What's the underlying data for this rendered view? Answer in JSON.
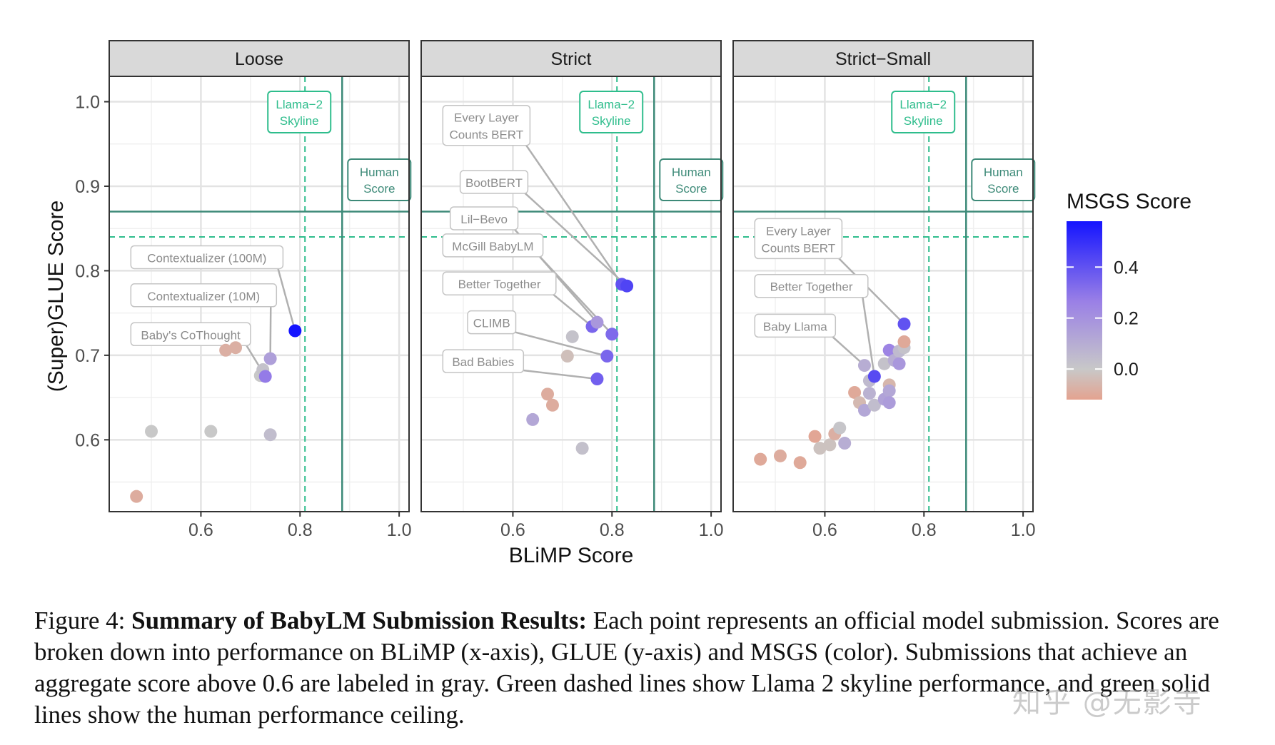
{
  "chart_data": {
    "type": "scatter",
    "xlabel": "BLiMP Score",
    "ylabel": "(Super)GLUE Score",
    "xlim": [
      0.415,
      1.02
    ],
    "ylim": [
      0.515,
      1.03
    ],
    "xticks": [
      "0.6",
      "0.8",
      "1.0"
    ],
    "yticks": [
      "0.6",
      "0.7",
      "0.8",
      "0.9",
      "1.0"
    ],
    "grid": true,
    "legend": {
      "title": "MSGS Score",
      "placement": "right",
      "ticks": [
        "0.4",
        "0.2",
        "0.0"
      ],
      "range": [
        -0.12,
        0.58
      ],
      "colors": {
        "low": "#e4a390",
        "mid": "#c8c8c8",
        "high": "#1414ff"
      }
    },
    "reference_lines": {
      "skyline": {
        "label": "Llama−2\nSkyline",
        "x": 0.81,
        "y": 0.84,
        "style": "dashed",
        "color": "#2ebd8c"
      },
      "human": {
        "label": "Human\nScore",
        "x": 0.885,
        "y": 0.87,
        "style": "solid",
        "color": "#3d8a78"
      }
    },
    "panels": [
      {
        "title": "Loose",
        "points": [
          {
            "x": 0.47,
            "y": 0.533,
            "c": -0.09
          },
          {
            "x": 0.5,
            "y": 0.61,
            "c": 0.0
          },
          {
            "x": 0.62,
            "y": 0.61,
            "c": 0.0
          },
          {
            "x": 0.65,
            "y": 0.706,
            "c": -0.08
          },
          {
            "x": 0.67,
            "y": 0.709,
            "c": -0.08
          },
          {
            "x": 0.72,
            "y": 0.676,
            "c": 0.0
          },
          {
            "x": 0.725,
            "y": 0.683,
            "c": 0.02
          },
          {
            "x": 0.73,
            "y": 0.675,
            "c": 0.28
          },
          {
            "x": 0.74,
            "y": 0.696,
            "c": 0.15
          },
          {
            "x": 0.74,
            "y": 0.606,
            "c": 0.04
          },
          {
            "x": 0.79,
            "y": 0.729,
            "c": 0.58
          }
        ],
        "labels": [
          {
            "text": "Contextualizer (100M)",
            "lx": 0.45,
            "ly": 0.816,
            "tx": 0.79,
            "ty": 0.729
          },
          {
            "text": "Contextualizer (10M)",
            "lx": 0.45,
            "ly": 0.771,
            "tx": 0.74,
            "ty": 0.696
          },
          {
            "text": "Baby's CoThought",
            "lx": 0.45,
            "ly": 0.725,
            "tx": 0.73,
            "ty": 0.675
          }
        ]
      },
      {
        "title": "Strict",
        "points": [
          {
            "x": 0.64,
            "y": 0.624,
            "c": 0.12
          },
          {
            "x": 0.67,
            "y": 0.654,
            "c": -0.09
          },
          {
            "x": 0.68,
            "y": 0.641,
            "c": -0.09
          },
          {
            "x": 0.71,
            "y": 0.699,
            "c": -0.03
          },
          {
            "x": 0.72,
            "y": 0.722,
            "c": 0.02
          },
          {
            "x": 0.74,
            "y": 0.59,
            "c": 0.03
          },
          {
            "x": 0.76,
            "y": 0.734,
            "c": 0.34
          },
          {
            "x": 0.77,
            "y": 0.739,
            "c": 0.18
          },
          {
            "x": 0.77,
            "y": 0.672,
            "c": 0.36
          },
          {
            "x": 0.79,
            "y": 0.699,
            "c": 0.34
          },
          {
            "x": 0.8,
            "y": 0.725,
            "c": 0.33
          },
          {
            "x": 0.82,
            "y": 0.784,
            "c": 0.4
          },
          {
            "x": 0.83,
            "y": 0.782,
            "c": 0.44
          }
        ],
        "labels": [
          {
            "text": "Every Layer\nCounts BERT",
            "lx": 0.45,
            "ly": 0.972,
            "tx": 0.82,
            "ty": 0.784
          },
          {
            "text": "BootBERT",
            "lx": 0.485,
            "ly": 0.905,
            "tx": 0.83,
            "ty": 0.782
          },
          {
            "text": "Lil−Bevo",
            "lx": 0.465,
            "ly": 0.862,
            "tx": 0.8,
            "ty": 0.725
          },
          {
            "text": "McGill BabyLM",
            "lx": 0.45,
            "ly": 0.83,
            "tx": 0.77,
            "ty": 0.739
          },
          {
            "text": "Better Together",
            "lx": 0.45,
            "ly": 0.785,
            "tx": 0.76,
            "ty": 0.734
          },
          {
            "text": "CLIMB",
            "lx": 0.5,
            "ly": 0.739,
            "tx": 0.79,
            "ty": 0.699
          },
          {
            "text": "Bad Babies",
            "lx": 0.45,
            "ly": 0.693,
            "tx": 0.77,
            "ty": 0.672
          }
        ]
      },
      {
        "title": "Strict−Small",
        "points": [
          {
            "x": 0.47,
            "y": 0.577,
            "c": -0.1
          },
          {
            "x": 0.51,
            "y": 0.581,
            "c": -0.09
          },
          {
            "x": 0.55,
            "y": 0.573,
            "c": -0.1
          },
          {
            "x": 0.58,
            "y": 0.604,
            "c": -0.11
          },
          {
            "x": 0.59,
            "y": 0.59,
            "c": -0.02
          },
          {
            "x": 0.61,
            "y": 0.594,
            "c": -0.02
          },
          {
            "x": 0.62,
            "y": 0.607,
            "c": -0.08
          },
          {
            "x": 0.63,
            "y": 0.614,
            "c": 0.01
          },
          {
            "x": 0.64,
            "y": 0.596,
            "c": 0.1
          },
          {
            "x": 0.66,
            "y": 0.656,
            "c": -0.1
          },
          {
            "x": 0.67,
            "y": 0.644,
            "c": -0.05
          },
          {
            "x": 0.68,
            "y": 0.688,
            "c": 0.1
          },
          {
            "x": 0.68,
            "y": 0.635,
            "c": 0.12
          },
          {
            "x": 0.69,
            "y": 0.655,
            "c": 0.08
          },
          {
            "x": 0.69,
            "y": 0.67,
            "c": 0.05
          },
          {
            "x": 0.7,
            "y": 0.641,
            "c": 0.04
          },
          {
            "x": 0.7,
            "y": 0.675,
            "c": 0.42
          },
          {
            "x": 0.72,
            "y": 0.648,
            "c": 0.14
          },
          {
            "x": 0.72,
            "y": 0.69,
            "c": 0.02
          },
          {
            "x": 0.73,
            "y": 0.665,
            "c": -0.06
          },
          {
            "x": 0.73,
            "y": 0.658,
            "c": 0.12
          },
          {
            "x": 0.73,
            "y": 0.644,
            "c": 0.16
          },
          {
            "x": 0.73,
            "y": 0.706,
            "c": 0.25
          },
          {
            "x": 0.74,
            "y": 0.694,
            "c": 0.1
          },
          {
            "x": 0.75,
            "y": 0.69,
            "c": 0.18
          },
          {
            "x": 0.75,
            "y": 0.705,
            "c": 0.05
          },
          {
            "x": 0.76,
            "y": 0.709,
            "c": 0.02
          },
          {
            "x": 0.76,
            "y": 0.716,
            "c": -0.1
          },
          {
            "x": 0.76,
            "y": 0.737,
            "c": 0.4
          }
        ],
        "labels": [
          {
            "text": "Every Layer\nCounts BERT",
            "lx": 0.45,
            "ly": 0.838,
            "tx": 0.76,
            "ty": 0.737
          },
          {
            "text": "Better Together",
            "lx": 0.45,
            "ly": 0.782,
            "tx": 0.7,
            "ty": 0.675
          },
          {
            "text": "Baby Llama",
            "lx": 0.45,
            "ly": 0.735,
            "tx": 0.68,
            "ty": 0.688
          }
        ]
      }
    ]
  },
  "caption": {
    "prefix": "Figure 4: ",
    "bold": "Summary of BabyLM Submission Results:",
    "rest": " Each point represents an official model submission. Scores are broken down into performance on BLiMP (x-axis), GLUE (y-axis) and MSGS (color). Submissions that achieve an aggregate score above 0.6 are labeled in gray. Green dashed lines show Llama 2 skyline performance, and green solid lines show the human performance ceiling."
  },
  "watermark": "知乎 @无影寺"
}
